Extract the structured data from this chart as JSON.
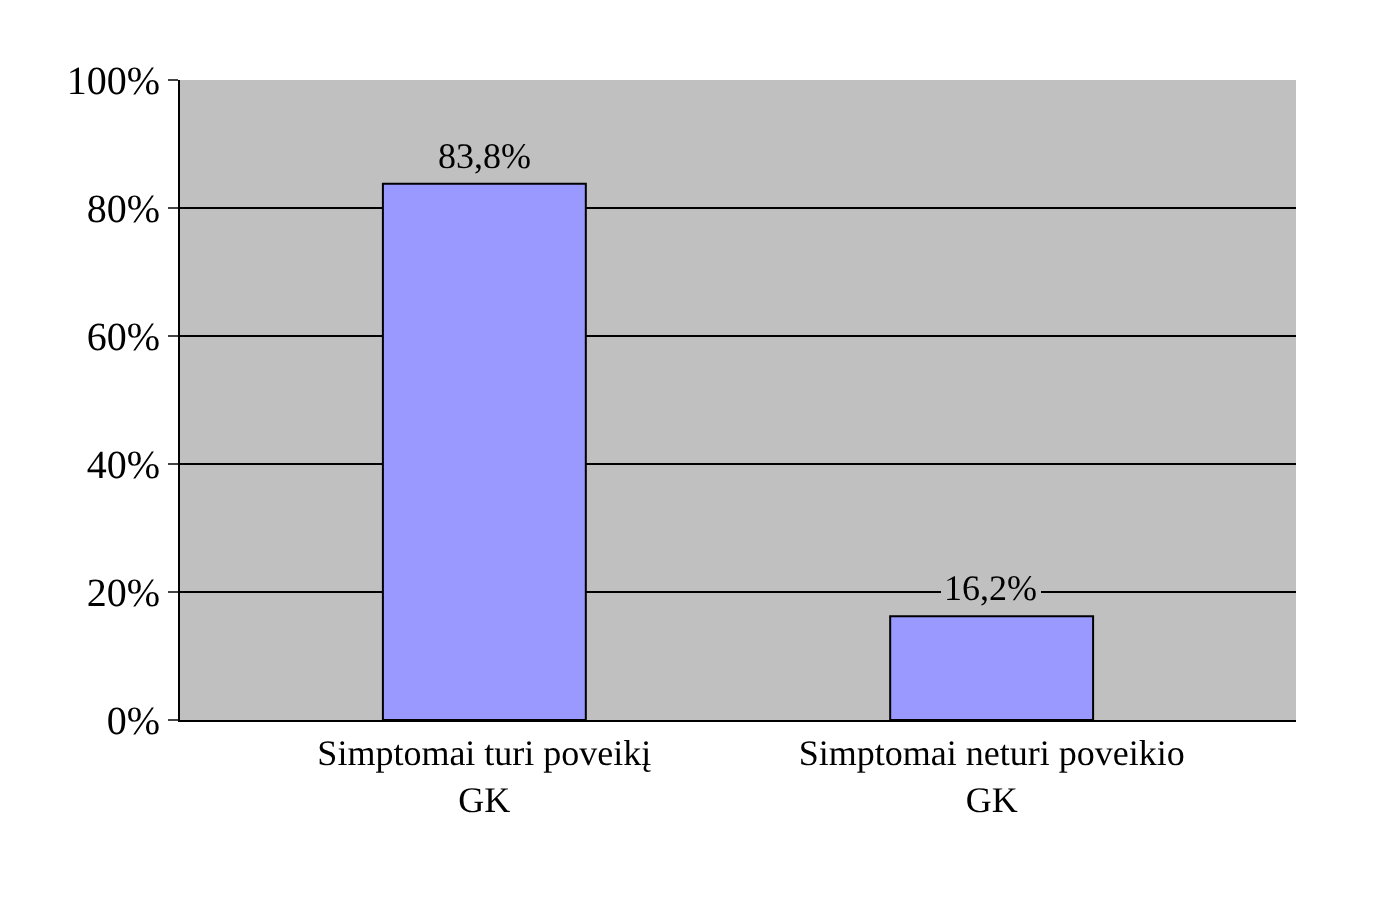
{
  "chart_data": {
    "type": "bar",
    "categories": [
      "Simptomai turi poveikį GK",
      "Simptomai neturi poveikio GK"
    ],
    "values": [
      83.8,
      16.2
    ],
    "value_labels": [
      "83,8%",
      "16,2%"
    ],
    "color": "#9999ff",
    "ylim": [
      0,
      100
    ],
    "yticks": [
      {
        "value": 0,
        "label": "0%"
      },
      {
        "value": 20,
        "label": "20%"
      },
      {
        "value": 40,
        "label": "40%"
      },
      {
        "value": 60,
        "label": "60%"
      },
      {
        "value": 80,
        "label": "80%"
      },
      {
        "value": 100,
        "label": "100%"
      }
    ],
    "grid": "y"
  }
}
